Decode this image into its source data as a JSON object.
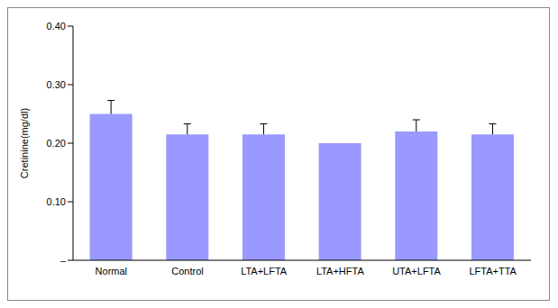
{
  "chart_data": {
    "type": "bar",
    "y_label": "Cretinine(mg/dl)",
    "categories": [
      "Normal",
      "Control",
      "LTA+LFTA",
      "LTA+HFTA",
      "UTA+LFTA",
      "LFTA+TTA"
    ],
    "values": [
      0.25,
      0.215,
      0.215,
      0.2,
      0.22,
      0.215
    ],
    "errors": [
      0.023,
      0.018,
      0.018,
      null,
      0.02,
      0.018
    ],
    "color": "#9999ff",
    "ylim": [
      0,
      0.4
    ],
    "yticks": [
      {
        "value": 0,
        "label": "–"
      },
      {
        "value": 0.1,
        "label": "0.10"
      },
      {
        "value": 0.2,
        "label": "0.20"
      },
      {
        "value": 0.3,
        "label": "0.30"
      },
      {
        "value": 0.4,
        "label": "0.40"
      }
    ],
    "grid": false
  }
}
